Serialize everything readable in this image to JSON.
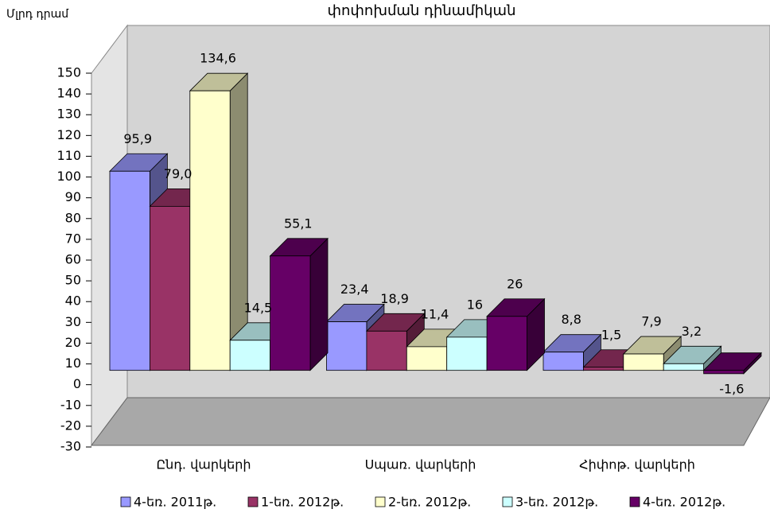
{
  "chart_data": {
    "type": "bar3d",
    "title": "փոփոխման դինամիկան",
    "y_label": "Մլրդ դրամ",
    "categories": [
      "Ընդ. վարկերի",
      "Սպառ. վարկերի",
      "Հիփոթ. վարկերի"
    ],
    "series": [
      {
        "name": "4-եռ. 2011թ.",
        "color": "#9999ff",
        "values": [
          95.9,
          23.4,
          8.8
        ],
        "value_labels": [
          "95,9",
          "23,4",
          "8,8"
        ]
      },
      {
        "name": "1-եռ. 2012թ.",
        "color": "#993366",
        "values": [
          79.0,
          18.9,
          1.5
        ],
        "value_labels": [
          "79,0",
          "18,9",
          "1,5"
        ]
      },
      {
        "name": "2-եռ. 2012թ.",
        "color": "#ffffcc",
        "values": [
          134.6,
          11.4,
          7.9
        ],
        "value_labels": [
          "134,6",
          "11,4",
          "7,9"
        ]
      },
      {
        "name": "3-եռ. 2012թ.",
        "color": "#ccffff",
        "values": [
          14.5,
          16,
          3.2
        ],
        "value_labels": [
          "14,5",
          "16",
          "3,2"
        ]
      },
      {
        "name": "4-եռ. 2012թ.",
        "color": "#660066",
        "values": [
          55.1,
          26,
          -1.6
        ],
        "value_labels": [
          "55,1",
          "26",
          "-1,6"
        ]
      }
    ],
    "ylim": [
      -30,
      150
    ],
    "yticks": [
      -30,
      -20,
      -10,
      0,
      10,
      20,
      30,
      40,
      50,
      60,
      70,
      80,
      90,
      100,
      110,
      120,
      130,
      140,
      150
    ],
    "legend": "bottom"
  }
}
